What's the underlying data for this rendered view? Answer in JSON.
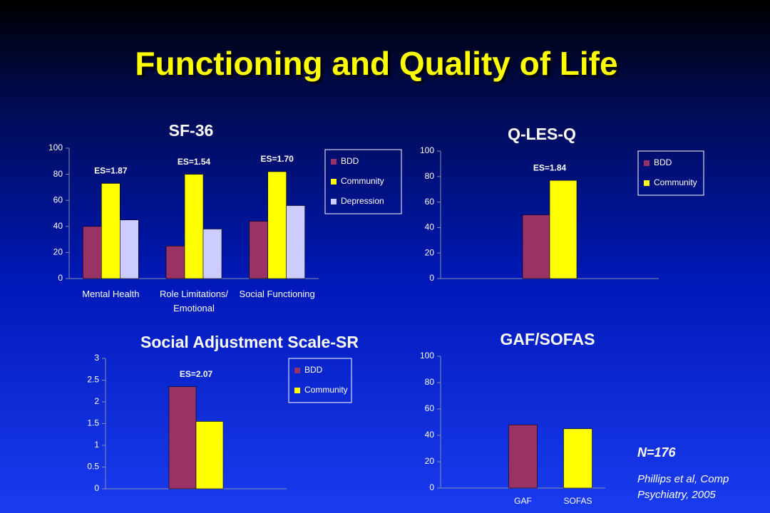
{
  "title": "Functioning and Quality of Life",
  "chart_data": [
    {
      "type": "bar",
      "title": "SF-36",
      "categories": [
        "Mental Health",
        "Role Limitations/ Emotional",
        "Social Functioning"
      ],
      "annotations": [
        "ES=1.87",
        "ES=1.54",
        "ES=1.70"
      ],
      "series": [
        {
          "name": "BDD",
          "color": "#993366",
          "values": [
            40,
            25,
            44
          ]
        },
        {
          "name": "Community",
          "color": "#ffff00",
          "values": [
            73,
            80,
            82
          ]
        },
        {
          "name": "Depression",
          "color": "#ccccff",
          "values": [
            45,
            38,
            56
          ]
        }
      ],
      "ylim": [
        0,
        100
      ],
      "yticks": [
        0,
        20,
        40,
        60,
        80,
        100
      ],
      "legend": "right"
    },
    {
      "type": "bar",
      "title": "Q-LES-Q",
      "categories": [
        null
      ],
      "annotations": [
        "ES=1.84"
      ],
      "series": [
        {
          "name": "BDD",
          "color": "#993366",
          "values": [
            50
          ]
        },
        {
          "name": "Community",
          "color": "#ffff00",
          "values": [
            77
          ]
        }
      ],
      "ylim": [
        0,
        100
      ],
      "yticks": [
        0,
        20,
        40,
        60,
        80,
        100
      ],
      "legend": "right"
    },
    {
      "type": "bar",
      "title": "Social Adjustment Scale-SR",
      "categories": [
        null
      ],
      "annotations": [
        "ES=2.07"
      ],
      "series": [
        {
          "name": "BDD",
          "color": "#993366",
          "values": [
            2.35
          ]
        },
        {
          "name": "Community",
          "color": "#ffff00",
          "values": [
            1.55
          ]
        }
      ],
      "ylim": [
        0,
        3
      ],
      "yticks": [
        0,
        0.5,
        1,
        1.5,
        2,
        2.5,
        3
      ],
      "legend": "right"
    },
    {
      "type": "bar",
      "title": "GAF/SOFAS",
      "categories": [
        "GAF",
        "SOFAS"
      ],
      "values": [
        48,
        45
      ],
      "colors": [
        "#993366",
        "#ffff00"
      ],
      "ylim": [
        0,
        100
      ],
      "yticks": [
        0,
        20,
        40,
        60,
        80,
        100
      ]
    }
  ],
  "footnote": {
    "n": "N=176",
    "citation": "Phillips et al, Comp Psychiatry, 2005"
  }
}
